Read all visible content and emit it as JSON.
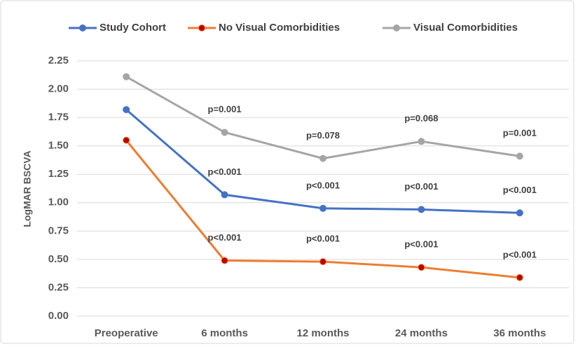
{
  "chart_data": {
    "type": "line",
    "y_label": "LogMAR BSCVA",
    "categories": [
      "Preoperative",
      "6 months",
      "12 months",
      "24 months",
      "36 months"
    ],
    "series": [
      {
        "name": "Study Cohort",
        "color": "#4472c4",
        "marker_color": "#4472c4",
        "values": [
          1.82,
          1.07,
          0.95,
          0.94,
          0.91
        ],
        "p_values": [
          null,
          "p<0.001",
          "p<0.001",
          "p<0.001",
          "p<0.001"
        ]
      },
      {
        "name": "No Visual Comorbidities",
        "color": "#ed7d31",
        "marker_color": "#c00000",
        "values": [
          1.55,
          0.49,
          0.48,
          0.43,
          0.34
        ],
        "p_values": [
          null,
          "p<0.001",
          "p<0.001",
          "p<0.001",
          "p<0.001"
        ]
      },
      {
        "name": "Visual Comorbidities",
        "color": "#a5a5a5",
        "marker_color": "#a5a5a5",
        "values": [
          2.11,
          1.62,
          1.39,
          1.54,
          1.41
        ],
        "p_values": [
          null,
          "p=0.001",
          "p=0.078",
          "p=0.068",
          "p=0.001"
        ]
      }
    ],
    "ylim": [
      0,
      2.25
    ],
    "yticks": [
      {
        "value": 0,
        "label": "0.00"
      },
      {
        "value": 0.25,
        "label": "0.25"
      },
      {
        "value": 0.5,
        "label": "0.50"
      },
      {
        "value": 0.75,
        "label": "0.75"
      },
      {
        "value": 1,
        "label": "1.00"
      },
      {
        "value": 1.25,
        "label": "1.25"
      },
      {
        "value": 1.5,
        "label": "1.50"
      },
      {
        "value": 1.75,
        "label": "1.75"
      },
      {
        "value": 2,
        "label": "2.00"
      },
      {
        "value": 2.25,
        "label": "2.25"
      }
    ],
    "grid": true,
    "legend": "top"
  }
}
